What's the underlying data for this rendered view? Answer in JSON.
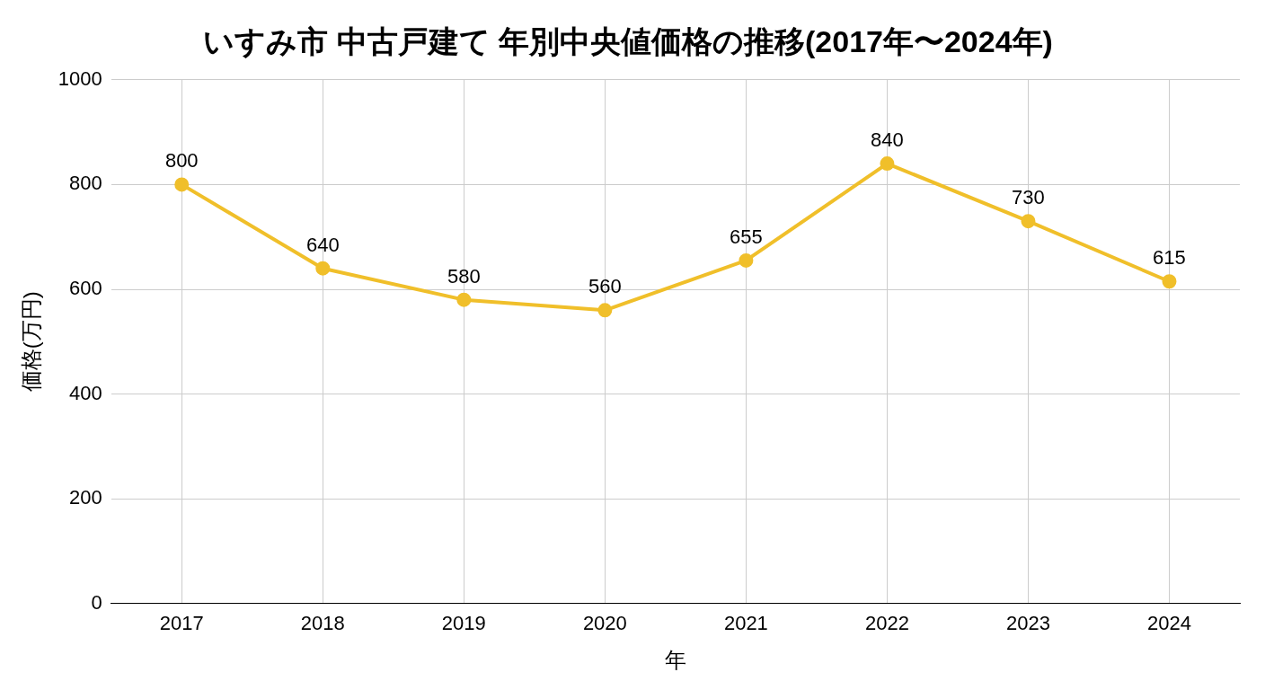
{
  "chart_data": {
    "type": "line",
    "title": "いすみ市 中古戸建て 年別中央値価格の推移(2017年〜2024年)",
    "xlabel": "年",
    "ylabel": "価格(万円)",
    "categories": [
      "2017",
      "2018",
      "2019",
      "2020",
      "2021",
      "2022",
      "2023",
      "2024"
    ],
    "series": [
      {
        "color": "#f0bf2a",
        "values": [
          800,
          640,
          580,
          560,
          655,
          840,
          730,
          615
        ]
      }
    ],
    "ylim": [
      0,
      1000
    ],
    "yticks": [
      0,
      200,
      400,
      600,
      800,
      1000
    ],
    "grid": true,
    "legend": false,
    "marker": "circle",
    "line_style": "solid",
    "data_labels": true
  }
}
